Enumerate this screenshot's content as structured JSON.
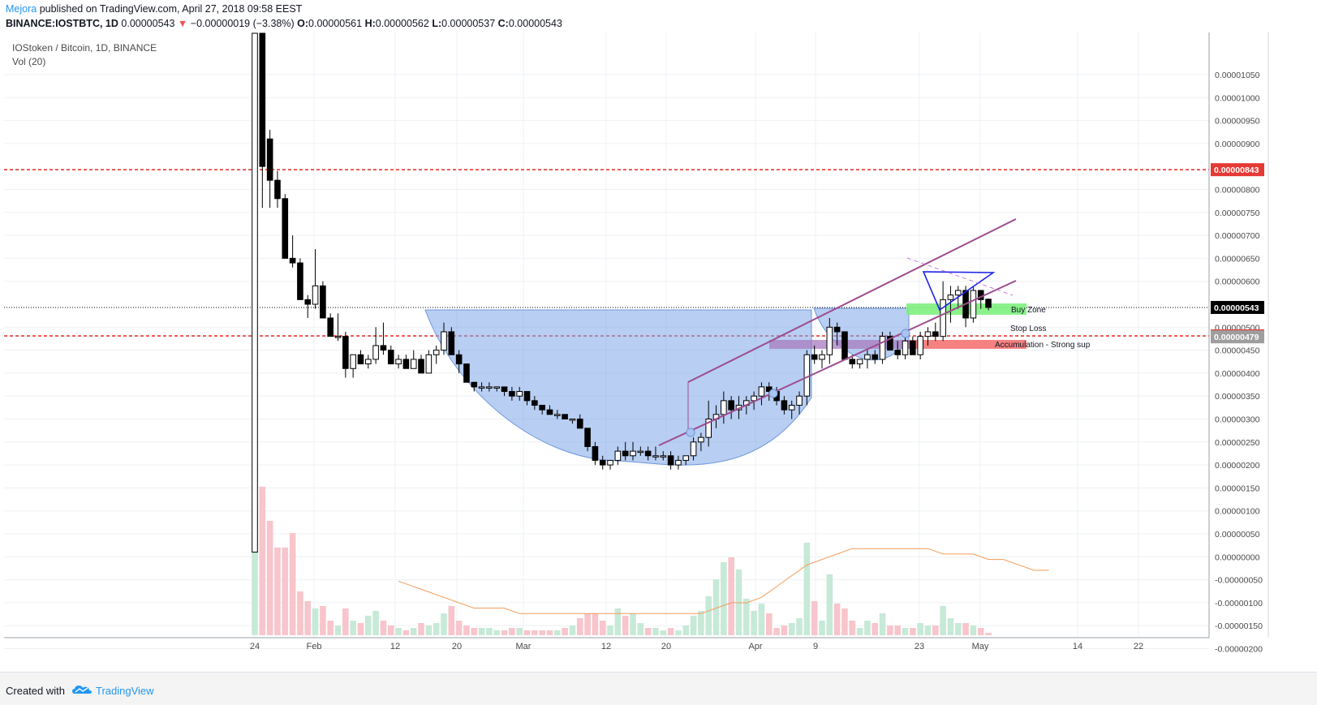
{
  "header": {
    "author": "Mejora",
    "published_text": "published on TradingView.com, April 27, 2018 09:58 EEST",
    "symbol": "BINANCE:IOSTBTC, 1D",
    "last": "0.00000543",
    "change": "−0.00000019 (−3.38%)",
    "open_label": "O:",
    "open": "0.00000561",
    "high_label": "H:",
    "high": "0.00000562",
    "low_label": "L:",
    "low": "0.00000537",
    "close_label": "C:",
    "close": "0.00000543"
  },
  "legend": {
    "series": "IOStoken / Bitcoin, 1D, BINANCE",
    "volume": "Vol (20)"
  },
  "footer": {
    "created": "Created with",
    "brand": "TradingView"
  },
  "colors": {
    "up": "#ffffff",
    "down": "#000000",
    "vol_up": "#c7e9d8",
    "vol_down": "#f7c5cb",
    "dashed_red": "#e53935",
    "cup_fill": "#7ea5e8",
    "channel": "#9c4d8e",
    "triangle": "#1e22e8",
    "buy_zone": "#7ef07e",
    "accumulation": "#f36b6b",
    "purple_zone": "#a77bbf"
  },
  "chart_data": {
    "type": "candlestick",
    "title": "IOStoken / Bitcoin, 1D, BINANCE",
    "y_ticks": [
      "0.00001050",
      "0.00001000",
      "0.00000950",
      "0.00000900",
      "0.00000800",
      "0.00000750",
      "0.00000700",
      "0.00000650",
      "0.00000600",
      "0.00000500",
      "0.00000450",
      "0.00000400",
      "0.00000350",
      "0.00000300",
      "0.00000250",
      "0.00000200",
      "0.00000150",
      "0.00000100",
      "0.00000050",
      "0.00000000",
      "-0.00000050",
      "-0.00000100",
      "-0.00000150",
      "-0.00000200"
    ],
    "x_ticks": [
      "24",
      "Feb",
      "12",
      "20",
      "Mar",
      "12",
      "20",
      "Apr",
      "9",
      "23",
      "May",
      "14",
      "22"
    ],
    "price_labels": [
      {
        "text": "0.00000843",
        "value": 8.43e-06,
        "color": "#e53935"
      },
      {
        "text": "0.00000543",
        "value": 5.43e-06,
        "color": "#000000"
      },
      {
        "text": "0.00000481",
        "value": 4.81e-06,
        "color": "#e53935"
      },
      {
        "text": "0.00000479",
        "value": 4.79e-06,
        "color": "#9e9e9e"
      }
    ],
    "horizontal_lines": [
      {
        "value": 8.43e-06,
        "style": "dashed",
        "color": "#e53935"
      },
      {
        "value": 4.81e-06,
        "style": "dashed",
        "color": "#e53935"
      },
      {
        "value": 5.43e-06,
        "style": "dotted",
        "color": "#000000"
      }
    ],
    "annotations": [
      "Buy Zone",
      "Stop Loss",
      "Accumulation - Strong sup"
    ],
    "candles": [
      [
        5.2e-06,
        1.9e-05,
        5.1e-06,
        1.65e-05,
        0.55
      ],
      [
        1.2e-05,
        1.3e-05,
        7.6e-06,
        9.1e-06,
        0.61
      ],
      [
        9.1e-06,
        9.3e-06,
        7.6e-06,
        8.2e-06,
        0.47
      ],
      [
        8.2e-06,
        8.4e-06,
        7.6e-06,
        7.8e-06,
        0.36
      ],
      [
        7.8e-06,
        7.9e-06,
        6.5e-06,
        6.5e-06,
        0.36
      ],
      [
        6.5e-06,
        7e-06,
        6.3e-06,
        6.4e-06,
        0.42
      ],
      [
        6.4e-06,
        6.5e-06,
        5.6e-06,
        5.6e-06,
        0.18
      ],
      [
        5.6e-06,
        5.7e-06,
        5.2e-06,
        5.5e-06,
        0.14
      ],
      [
        5.5e-06,
        6.7e-06,
        5.4e-06,
        5.9e-06,
        0.11
      ],
      [
        5.9e-06,
        6e-06,
        5.2e-06,
        5.2e-06,
        0.12
      ],
      [
        5.2e-06,
        5.3e-06,
        4.8e-06,
        4.8e-06,
        0.06
      ],
      [
        4.8e-06,
        5.3e-06,
        4.7e-06,
        4.8e-06,
        0.04
      ],
      [
        4.8e-06,
        4.9e-06,
        3.9e-06,
        4.1e-06,
        0.11
      ],
      [
        4.1e-06,
        4.4e-06,
        3.9e-06,
        4.4e-06,
        0.06
      ],
      [
        4.4e-06,
        4.5e-06,
        4.2e-06,
        4.2e-06,
        0.05
      ],
      [
        4.2e-06,
        4.4e-06,
        4.1e-06,
        4.3e-06,
        0.08
      ],
      [
        4.3e-06,
        5e-06,
        4.2e-06,
        4.6e-06,
        0.1
      ],
      [
        4.6e-06,
        5.1e-06,
        4.4e-06,
        4.5e-06,
        0.06
      ],
      [
        4.5e-06,
        4.6e-06,
        4.2e-06,
        4.2e-06,
        0.04
      ],
      [
        4.2e-06,
        4.4e-06,
        4.1e-06,
        4.3e-06,
        0.03
      ],
      [
        4.3e-06,
        4.4e-06,
        4.1e-06,
        4.1e-06,
        0.02
      ],
      [
        4.1e-06,
        4.5e-06,
        4.1e-06,
        4.3e-06,
        0.03
      ],
      [
        4.3e-06,
        4.4e-06,
        4e-06,
        4e-06,
        0.05
      ],
      [
        4e-06,
        4.5e-06,
        4e-06,
        4.4e-06,
        0.04
      ],
      [
        4.4e-06,
        4.6e-06,
        4.2e-06,
        4.5e-06,
        0.05
      ],
      [
        4.5e-06,
        5.1e-06,
        4.4e-06,
        4.9e-06,
        0.09
      ],
      [
        4.9e-06,
        5e-06,
        4.4e-06,
        4.4e-06,
        0.12
      ],
      [
        4.4e-06,
        4.5e-06,
        4e-06,
        4.2e-06,
        0.06
      ],
      [
        4.2e-06,
        4.2e-06,
        3.8e-06,
        3.8e-06,
        0.04
      ],
      [
        3.8e-06,
        3.8e-06,
        3.6e-06,
        3.7e-06,
        0.03
      ],
      [
        3.7e-06,
        3.8e-06,
        3.6e-06,
        3.7e-06,
        0.03
      ],
      [
        3.7e-06,
        3.8e-06,
        3.6e-06,
        3.7e-06,
        0.03
      ],
      [
        3.7e-06,
        3.7e-06,
        3.6e-06,
        3.7e-06,
        0.02
      ],
      [
        3.7e-06,
        3.7e-06,
        3.5e-06,
        3.6e-06,
        0.02
      ],
      [
        3.6e-06,
        3.7e-06,
        3.4e-06,
        3.5e-06,
        0.03
      ],
      [
        3.5e-06,
        3.7e-06,
        3.4e-06,
        3.6e-06,
        0.03
      ],
      [
        3.6e-06,
        3.6e-06,
        3.3e-06,
        3.4e-06,
        0.02
      ],
      [
        3.4e-06,
        3.5e-06,
        3.2e-06,
        3.3e-06,
        0.02
      ],
      [
        3.3e-06,
        3.3e-06,
        3.1e-06,
        3.2e-06,
        0.02
      ],
      [
        3.2e-06,
        3.3e-06,
        3.1e-06,
        3.1e-06,
        0.02
      ],
      [
        3.1e-06,
        3.2e-06,
        3e-06,
        3.1e-06,
        0.02
      ],
      [
        3.1e-06,
        3.1e-06,
        3e-06,
        3e-06,
        0.03
      ],
      [
        3e-06,
        3e-06,
        2.9e-06,
        3e-06,
        0.04
      ],
      [
        3e-06,
        3.1e-06,
        2.8e-06,
        2.8e-06,
        0.07
      ],
      [
        2.8e-06,
        2.8e-06,
        2.3e-06,
        2.4e-06,
        0.09
      ],
      [
        2.4e-06,
        2.5e-06,
        2e-06,
        2.1e-06,
        0.09
      ],
      [
        2.1e-06,
        2.2e-06,
        1.9e-06,
        2e-06,
        0.06
      ],
      [
        2e-06,
        2.1e-06,
        1.9e-06,
        2.1e-06,
        0.04
      ],
      [
        2.1e-06,
        2.4e-06,
        2e-06,
        2.3e-06,
        0.11
      ],
      [
        2.3e-06,
        2.5e-06,
        2.1e-06,
        2.2e-06,
        0.08
      ],
      [
        2.2e-06,
        2.5e-06,
        2.1e-06,
        2.3e-06,
        0.09
      ],
      [
        2.3e-06,
        2.4e-06,
        2.2e-06,
        2.3e-06,
        0.05
      ],
      [
        2.3e-06,
        2.4e-06,
        2.1e-06,
        2.2e-06,
        0.03
      ],
      [
        2.2e-06,
        2.4e-06,
        2.1e-06,
        2.2e-06,
        0.03
      ],
      [
        2.2e-06,
        2.3e-06,
        2.1e-06,
        2.2e-06,
        0.02
      ],
      [
        2.2e-06,
        2.3e-06,
        1.9e-06,
        2e-06,
        0.03
      ],
      [
        2e-06,
        2.2e-06,
        1.9e-06,
        2.1e-06,
        0.02
      ],
      [
        2.1e-06,
        2.2e-06,
        2e-06,
        2.2e-06,
        0.04
      ],
      [
        2.2e-06,
        2.6e-06,
        2.1e-06,
        2.5e-06,
        0.08
      ],
      [
        2.5e-06,
        2.7e-06,
        2.3e-06,
        2.6e-06,
        0.1
      ],
      [
        2.6e-06,
        3.4e-06,
        2.4e-06,
        3e-06,
        0.16
      ],
      [
        3e-06,
        3.3e-06,
        2.8e-06,
        3.1e-06,
        0.23
      ],
      [
        3.1e-06,
        3.6e-06,
        2.9e-06,
        3.4e-06,
        0.3
      ],
      [
        3.4e-06,
        3.5e-06,
        3e-06,
        3.2e-06,
        0.32
      ],
      [
        3.2e-06,
        3.5e-06,
        3e-06,
        3.3e-06,
        0.27
      ],
      [
        3.3e-06,
        3.5e-06,
        3.1e-06,
        3.4e-06,
        0.15
      ],
      [
        3.4e-06,
        3.6e-06,
        3.2e-06,
        3.5e-06,
        0.1
      ],
      [
        3.5e-06,
        3.8e-06,
        3.3e-06,
        3.7e-06,
        0.13
      ],
      [
        3.7e-06,
        3.8e-06,
        3.4e-06,
        3.6e-06,
        0.09
      ],
      [
        3.6e-06,
        3.7e-06,
        3.3e-06,
        3.4e-06,
        0.03
      ],
      [
        3.4e-06,
        3.5e-06,
        3.1e-06,
        3.2e-06,
        0.04
      ],
      [
        3.2e-06,
        3.4e-06,
        3e-06,
        3.3e-06,
        0.05
      ],
      [
        3.3e-06,
        3.6e-06,
        3.1e-06,
        3.5e-06,
        0.07
      ],
      [
        3.5e-06,
        4.5e-06,
        3.3e-06,
        4.4e-06,
        0.38
      ],
      [
        4.4e-06,
        4.6e-06,
        4.2e-06,
        4.3e-06,
        0.14
      ],
      [
        4.3e-06,
        4.5e-06,
        4.1e-06,
        4.4e-06,
        0.06
      ],
      [
        4.4e-06,
        5.2e-06,
        4.2e-06,
        5e-06,
        0.25
      ],
      [
        5e-06,
        5.1e-06,
        4.6e-06,
        4.9e-06,
        0.13
      ],
      [
        4.9e-06,
        4.9e-06,
        4.3e-06,
        4.3e-06,
        0.11
      ],
      [
        4.3e-06,
        4.4e-06,
        4.1e-06,
        4.2e-06,
        0.06
      ],
      [
        4.2e-06,
        4.3e-06,
        4.1e-06,
        4.3e-06,
        0.03
      ],
      [
        4.3e-06,
        4.5e-06,
        4.1e-06,
        4.4e-06,
        0.06
      ],
      [
        4.4e-06,
        4.5e-06,
        4.2e-06,
        4.3e-06,
        0.05
      ],
      [
        4.3e-06,
        4.9e-06,
        4.2e-06,
        4.8e-06,
        0.09
      ],
      [
        4.8e-06,
        4.9e-06,
        4.5e-06,
        4.5e-06,
        0.04
      ],
      [
        4.5e-06,
        4.7e-06,
        4.3e-06,
        4.4e-06,
        0.04
      ],
      [
        4.4e-06,
        4.8e-06,
        4.3e-06,
        4.7e-06,
        0.03
      ],
      [
        4.7e-06,
        4.8e-06,
        4.4e-06,
        4.4e-06,
        0.03
      ],
      [
        4.4e-06,
        4.9e-06,
        4.3e-06,
        4.8e-06,
        0.05
      ],
      [
        4.8e-06,
        5e-06,
        4.6e-06,
        4.9e-06,
        0.04
      ],
      [
        4.9e-06,
        5.1e-06,
        4.7e-06,
        4.8e-06,
        0.04
      ],
      [
        4.8e-06,
        6e-06,
        4.7e-06,
        5.6e-06,
        0.12
      ],
      [
        5.6e-06,
        5.9e-06,
        5.1e-06,
        5.7e-06,
        0.07
      ],
      [
        5.7e-06,
        5.9e-06,
        5.4e-06,
        5.8e-06,
        0.05
      ],
      [
        5.8e-06,
        5.9e-06,
        5e-06,
        5.2e-06,
        0.05
      ],
      [
        5.2e-06,
        5.9e-06,
        5.1e-06,
        5.8e-06,
        0.04
      ],
      [
        5.8e-06,
        5.8e-06,
        5.4e-06,
        5.6e-06,
        0.03
      ],
      [
        5.61e-06,
        5.62e-06,
        5.37e-06,
        5.43e-06,
        0.01
      ]
    ],
    "volume_ma": [
      0.1,
      0.09,
      0.08,
      0.07,
      0.06,
      0.05,
      0.05,
      0.05,
      0.04,
      0.04,
      0.04,
      0.04,
      0.04,
      0.04,
      0.04,
      0.04,
      0.04,
      0.04,
      0.04,
      0.04,
      0.04,
      0.05,
      0.06,
      0.06,
      0.07,
      0.09,
      0.11,
      0.13,
      0.14,
      0.15,
      0.16,
      0.16,
      0.16,
      0.16,
      0.16,
      0.16,
      0.15,
      0.15,
      0.15,
      0.14,
      0.14,
      0.13,
      0.12,
      0.12
    ]
  }
}
